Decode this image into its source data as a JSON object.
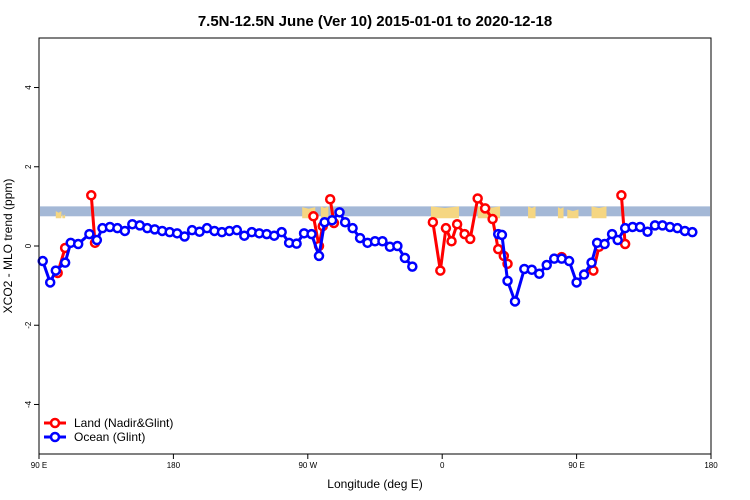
{
  "chart_data": {
    "type": "line",
    "title": "7.5N-12.5N June (Ver 10)   2015-01-01 to 2020-12-18",
    "xlabel": "Longitude (deg E)",
    "ylabel": "XCO2 - MLO trend (ppm)",
    "xlim": [
      90,
      450
    ],
    "ylim": [
      -5.25,
      5.25
    ],
    "x_ticks": [
      {
        "value": 90,
        "label": "90 E"
      },
      {
        "value": 162,
        "label": "180"
      },
      {
        "value": 234,
        "label": "90 W"
      },
      {
        "value": 306,
        "label": "0"
      },
      {
        "value": 378,
        "label": "90 E"
      },
      {
        "value": 450,
        "label": "180"
      }
    ],
    "y_ticks": [
      -4,
      -2,
      0,
      2,
      4
    ],
    "grid": false,
    "legend_position": "bottom-left",
    "band": {
      "description": "blue horizontal reference band",
      "y_range": [
        0.75,
        1.0
      ],
      "color": "#a4b8d6"
    },
    "land_fill_color": "#f5d682",
    "land_spikes": [
      [
        99,
        102,
        0.88
      ],
      [
        102.5,
        104,
        0.8
      ],
      [
        231,
        238,
        0.98
      ],
      [
        241,
        245,
        1.0
      ],
      [
        300,
        315,
        1.0
      ],
      [
        325,
        337,
        1.0
      ],
      [
        352,
        356,
        1.0
      ],
      [
        368,
        371,
        0.98
      ],
      [
        373,
        379,
        0.92
      ],
      [
        386,
        394,
        1.0
      ]
    ],
    "series": [
      {
        "name": "Land (Nadir&Glint)",
        "color": "#ff0000",
        "segments": [
          [
            [
              100,
              -0.68
            ],
            [
              104,
              -0.05
            ]
          ],
          [
            [
              118,
              1.28
            ],
            [
              120,
              0.08
            ]
          ],
          [
            [
              237,
              0.75
            ],
            [
              240,
              0.0
            ],
            [
              242,
              0.5
            ]
          ],
          [
            [
              246,
              1.18
            ],
            [
              248,
              0.58
            ]
          ],
          [
            [
              301,
              0.6
            ],
            [
              305,
              -0.62
            ],
            [
              308,
              0.45
            ],
            [
              311,
              0.12
            ],
            [
              314,
              0.55
            ],
            [
              318,
              0.3
            ],
            [
              321,
              0.18
            ],
            [
              325,
              1.2
            ],
            [
              329,
              0.95
            ],
            [
              333,
              0.68
            ],
            [
              336,
              -0.08
            ],
            [
              339,
              -0.25
            ],
            [
              341,
              -0.45
            ]
          ],
          [
            [
              370,
              -0.28
            ]
          ],
          [
            [
              387,
              -0.62
            ],
            [
              390,
              -0.02
            ]
          ],
          [
            [
              402,
              1.28
            ],
            [
              404,
              0.05
            ]
          ]
        ]
      },
      {
        "name": "Ocean (Glint)",
        "color": "#0000ff",
        "segments": [
          [
            [
              92,
              -0.38
            ],
            [
              96,
              -0.92
            ],
            [
              99,
              -0.62
            ],
            [
              104,
              -0.42
            ],
            [
              107,
              0.08
            ],
            [
              111,
              0.05
            ],
            [
              117,
              0.3
            ],
            [
              121,
              0.15
            ],
            [
              124,
              0.45
            ],
            [
              128,
              0.48
            ],
            [
              132,
              0.45
            ],
            [
              136,
              0.38
            ],
            [
              140,
              0.55
            ],
            [
              144,
              0.52
            ],
            [
              148,
              0.45
            ],
            [
              152,
              0.42
            ],
            [
              156,
              0.38
            ],
            [
              160,
              0.35
            ],
            [
              164,
              0.32
            ],
            [
              168,
              0.24
            ],
            [
              172,
              0.4
            ],
            [
              176,
              0.36
            ],
            [
              180,
              0.45
            ],
            [
              184,
              0.38
            ],
            [
              188,
              0.35
            ],
            [
              192,
              0.38
            ],
            [
              196,
              0.4
            ],
            [
              200,
              0.26
            ],
            [
              204,
              0.35
            ],
            [
              208,
              0.32
            ],
            [
              212,
              0.3
            ],
            [
              216,
              0.26
            ],
            [
              220,
              0.35
            ],
            [
              224,
              0.08
            ],
            [
              228,
              0.06
            ],
            [
              232,
              0.32
            ],
            [
              236,
              0.3
            ],
            [
              240,
              -0.25
            ],
            [
              243,
              0.6
            ],
            [
              247,
              0.65
            ],
            [
              251,
              0.85
            ],
            [
              254,
              0.6
            ],
            [
              258,
              0.45
            ],
            [
              262,
              0.2
            ],
            [
              266,
              0.08
            ],
            [
              270,
              0.12
            ],
            [
              274,
              0.12
            ],
            [
              278,
              -0.02
            ],
            [
              282,
              0.0
            ],
            [
              286,
              -0.3
            ],
            [
              290,
              -0.52
            ]
          ],
          [
            [
              336,
              0.3
            ],
            [
              338,
              0.28
            ],
            [
              341,
              -0.88
            ],
            [
              345,
              -1.4
            ],
            [
              350,
              -0.58
            ],
            [
              354,
              -0.6
            ],
            [
              358,
              -0.7
            ],
            [
              362,
              -0.48
            ],
            [
              366,
              -0.32
            ],
            [
              370,
              -0.32
            ],
            [
              374,
              -0.38
            ],
            [
              378,
              -0.92
            ],
            [
              382,
              -0.72
            ],
            [
              386,
              -0.42
            ],
            [
              389,
              0.08
            ],
            [
              393,
              0.05
            ],
            [
              397,
              0.3
            ],
            [
              400,
              0.15
            ],
            [
              404,
              0.45
            ],
            [
              408,
              0.48
            ],
            [
              412,
              0.48
            ],
            [
              416,
              0.36
            ],
            [
              420,
              0.52
            ],
            [
              424,
              0.52
            ],
            [
              428,
              0.48
            ],
            [
              432,
              0.45
            ],
            [
              436,
              0.38
            ],
            [
              440,
              0.35
            ]
          ]
        ]
      }
    ]
  }
}
